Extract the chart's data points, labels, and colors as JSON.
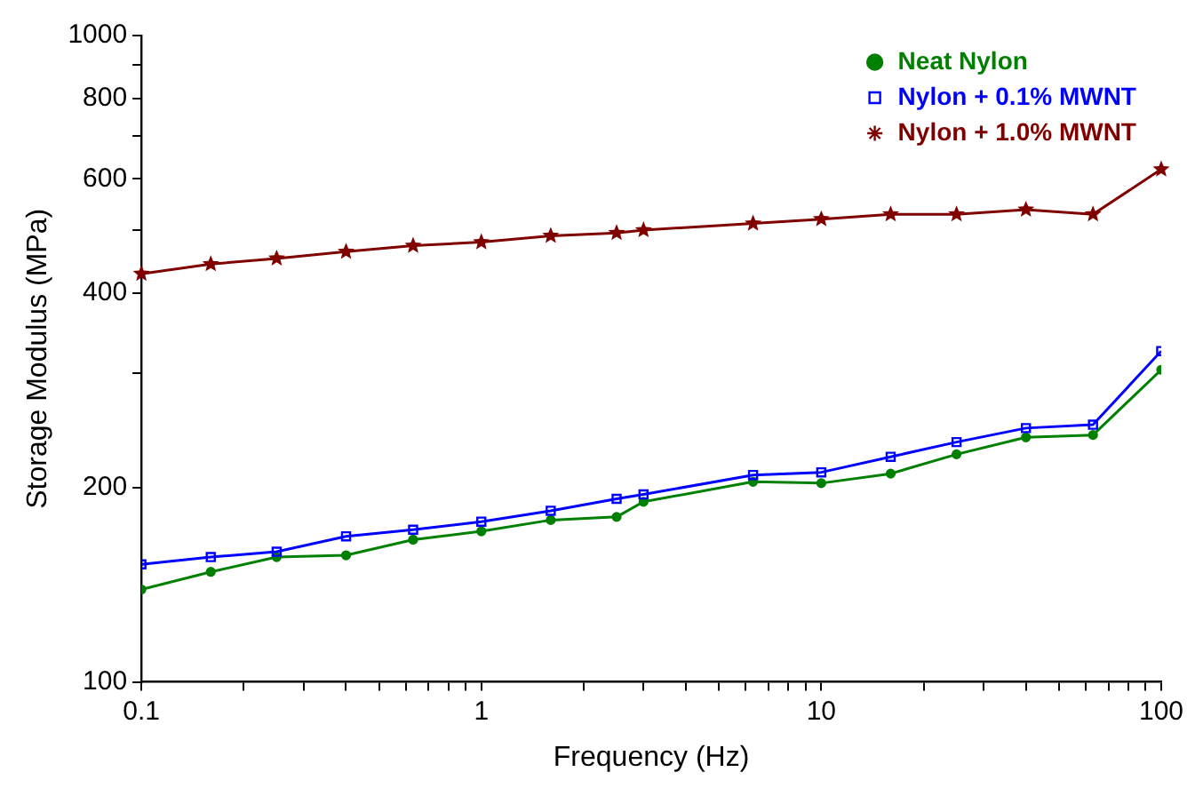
{
  "chart_data": {
    "type": "line",
    "xlabel": "Frequency (Hz)",
    "ylabel": "Storage Modulus (MPa)",
    "log": "xy",
    "x": [
      0.1,
      0.16,
      0.25,
      0.4,
      0.63,
      1,
      1.6,
      2.5,
      3,
      6.3,
      10,
      16,
      25,
      40,
      63,
      100
    ],
    "series": [
      {
        "name": "Neat Nylon",
        "color": "#008000",
        "marker": "circle",
        "values": [
          139,
          148,
          156,
          157,
          166,
          171,
          178,
          180,
          190,
          204,
          203,
          210,
          225,
          239,
          241,
          304
        ]
      },
      {
        "name": "Nylon + 0.1% MWNT",
        "color": "#0000ff",
        "marker": "square",
        "values": [
          152,
          156,
          159,
          168,
          172,
          177,
          184,
          192,
          195,
          209,
          211,
          223,
          235,
          247,
          250,
          325
        ]
      },
      {
        "name": "Nylon + 1.0% MWNT",
        "color": "#800000",
        "marker": "star",
        "values": [
          428,
          443,
          452,
          463,
          473,
          479,
          490,
          495,
          500,
          512,
          520,
          529,
          529,
          538,
          529,
          621
        ]
      }
    ],
    "xlim": [
      0.1,
      100
    ],
    "xticks": [
      0.1,
      {
        "value": 0.2,
        "label": null
      },
      {
        "value": 0.3,
        "label": null
      },
      {
        "value": 0.4,
        "label": null
      },
      {
        "value": 0.5,
        "label": null
      },
      {
        "value": 0.6,
        "label": null
      },
      {
        "value": 0.7,
        "label": null
      },
      {
        "value": 0.8,
        "label": null
      },
      {
        "value": 0.9,
        "label": null
      },
      1,
      {
        "value": 2,
        "label": null
      },
      {
        "value": 3,
        "label": null
      },
      {
        "value": 4,
        "label": null
      },
      {
        "value": 5,
        "label": null
      },
      {
        "value": 6,
        "label": null
      },
      {
        "value": 7,
        "label": null
      },
      {
        "value": 8,
        "label": null
      },
      {
        "value": 9,
        "label": null
      },
      10,
      {
        "value": 20,
        "label": null
      },
      {
        "value": 30,
        "label": null
      },
      {
        "value": 40,
        "label": null
      },
      {
        "value": 50,
        "label": null
      },
      {
        "value": 60,
        "label": null
      },
      {
        "value": 70,
        "label": null
      },
      {
        "value": 80,
        "label": null
      },
      {
        "value": 90,
        "label": null
      },
      100
    ],
    "ylim": [
      100,
      1000
    ],
    "yticks": [
      100,
      200,
      {
        "value": 300,
        "label": null
      },
      400,
      {
        "value": 500,
        "label": null
      },
      600,
      {
        "value": 700,
        "label": null
      },
      800,
      {
        "value": 900,
        "label": null
      },
      1000
    ],
    "grid": false,
    "legend": "top right",
    "line_style": "solid"
  }
}
